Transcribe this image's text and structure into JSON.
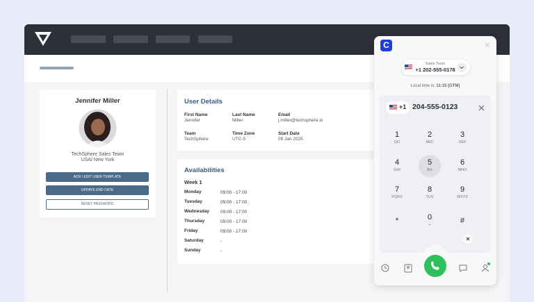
{
  "profile": {
    "name": "Jennifer Miller",
    "team": "TechSphere Sales Team",
    "location": "USA/ New York",
    "buttons": [
      "ADD / EDIT USER TEMPLATE",
      "UPDATE END DATE",
      "RESET PASSWORD"
    ]
  },
  "user_details": {
    "title": "User Details",
    "fields": [
      {
        "label": "First Name",
        "value": "Jennifer"
      },
      {
        "label": "Last Name",
        "value": "Miller"
      },
      {
        "label": "Email",
        "value": "j.miller@techsphere.io"
      },
      {
        "label": "Team",
        "value": "TechSphere"
      },
      {
        "label": "Time Zone",
        "value": "UTC-5"
      },
      {
        "label": "Start Date",
        "value": "09 Jan 2025"
      }
    ]
  },
  "availabilities": {
    "title": "Availabilities",
    "week": "Week 1",
    "days": [
      {
        "day": "Monday",
        "hours": "09:00 - 17:00"
      },
      {
        "day": "Tuesday",
        "hours": "09:00 - 17:00"
      },
      {
        "day": "Wednesday",
        "hours": "09:00 - 17:00"
      },
      {
        "day": "Thursday",
        "hours": "09:00 - 17:00"
      },
      {
        "day": "Friday",
        "hours": "09:00 - 17:00"
      },
      {
        "day": "Saturday",
        "hours": "-"
      },
      {
        "day": "Sunday",
        "hours": "-"
      }
    ]
  },
  "dialer": {
    "line_name": "Sales Team",
    "line_number": "+1 202-555-0178",
    "local_time_label": "Local time is:",
    "local_time": "11:15 (GTM)",
    "country_code": "+1",
    "dialed_number": "204-555-0123",
    "keys": [
      {
        "digit": "1",
        "letters": "QO"
      },
      {
        "digit": "2",
        "letters": "ABC"
      },
      {
        "digit": "3",
        "letters": "DEF"
      },
      {
        "digit": "4",
        "letters": "GHI"
      },
      {
        "digit": "5",
        "letters": "JKL"
      },
      {
        "digit": "6",
        "letters": "MNO"
      },
      {
        "digit": "7",
        "letters": "PQRS"
      },
      {
        "digit": "8",
        "letters": "TUV"
      },
      {
        "digit": "9",
        "letters": "WXYZ"
      },
      {
        "digit": "*"
      },
      {
        "digit": "0",
        "letters": "+"
      },
      {
        "digit": "#"
      }
    ]
  }
}
